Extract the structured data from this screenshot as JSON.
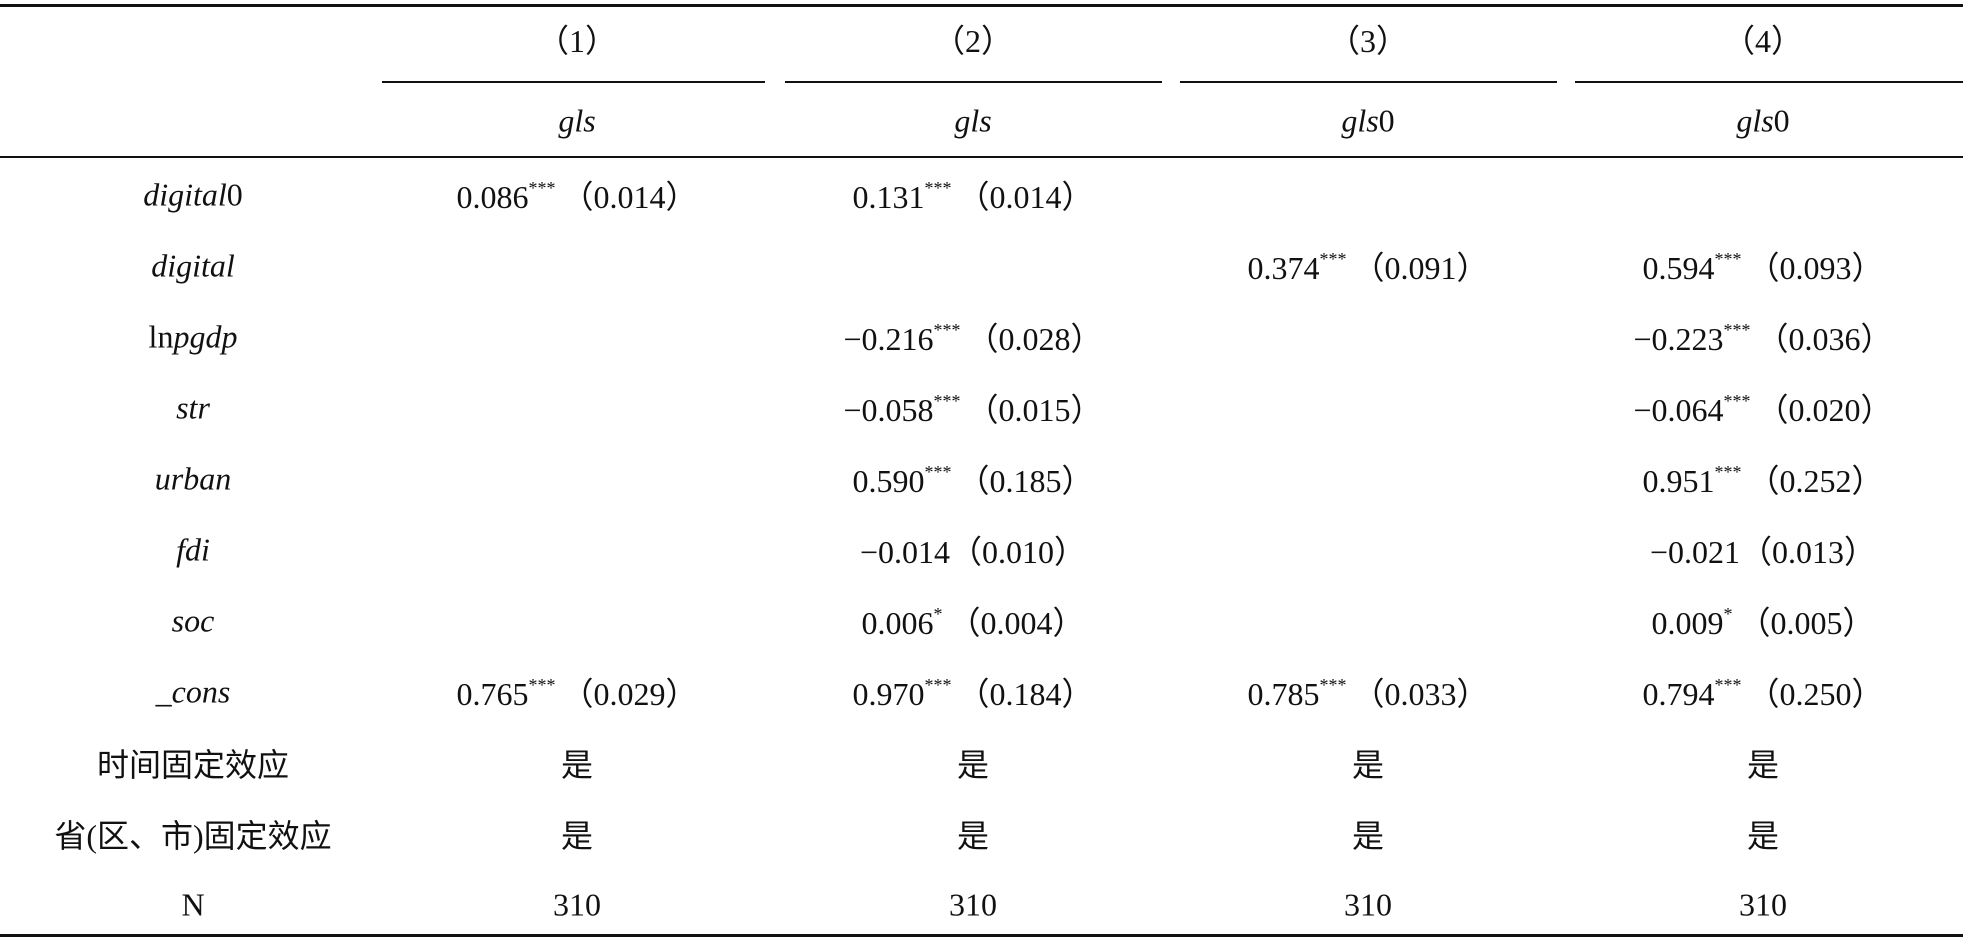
{
  "table": {
    "columns": [
      {
        "number": "（1）",
        "dep": [
          {
            "text": "gls",
            "italic": true
          }
        ]
      },
      {
        "number": "（2）",
        "dep": [
          {
            "text": "gls",
            "italic": true
          }
        ]
      },
      {
        "number": "（3）",
        "dep": [
          {
            "text": "gls",
            "italic": true
          },
          {
            "text": "0",
            "italic": false
          }
        ]
      },
      {
        "number": "（4）",
        "dep": [
          {
            "text": "gls",
            "italic": true
          },
          {
            "text": "0",
            "italic": false
          }
        ]
      }
    ],
    "rows": [
      {
        "label": [
          {
            "text": "digital",
            "italic": true
          },
          {
            "text": "0",
            "italic": false
          }
        ],
        "cells": [
          {
            "coef": "0.086",
            "stars": "***",
            "se": "（0.014）"
          },
          {
            "coef": "0.131",
            "stars": "***",
            "se": "（0.014）"
          },
          null,
          null
        ]
      },
      {
        "label": [
          {
            "text": "digital",
            "italic": true
          }
        ],
        "cells": [
          null,
          null,
          {
            "coef": "0.374",
            "stars": "***",
            "se": "（0.091）"
          },
          {
            "coef": "0.594",
            "stars": "***",
            "se": "（0.093）"
          }
        ]
      },
      {
        "label": [
          {
            "text": "ln",
            "italic": false
          },
          {
            "text": "pgdp",
            "italic": true
          }
        ],
        "cells": [
          null,
          {
            "coef": "−0.216",
            "stars": "***",
            "se": "（0.028）"
          },
          null,
          {
            "coef": "−0.223",
            "stars": "***",
            "se": "（0.036）"
          }
        ]
      },
      {
        "label": [
          {
            "text": "str",
            "italic": true
          }
        ],
        "cells": [
          null,
          {
            "coef": "−0.058",
            "stars": "***",
            "se": "（0.015）"
          },
          null,
          {
            "coef": "−0.064",
            "stars": "***",
            "se": "（0.020）"
          }
        ]
      },
      {
        "label": [
          {
            "text": "urban",
            "italic": true
          }
        ],
        "cells": [
          null,
          {
            "coef": "0.590",
            "stars": "***",
            "se": "（0.185）"
          },
          null,
          {
            "coef": "0.951",
            "stars": "***",
            "se": "（0.252）"
          }
        ]
      },
      {
        "label": [
          {
            "text": "fdi",
            "italic": true
          }
        ],
        "cells": [
          null,
          {
            "coef": "−0.014",
            "se": "（0.010）"
          },
          null,
          {
            "coef": "−0.021",
            "se": "（0.013）"
          }
        ]
      },
      {
        "label": [
          {
            "text": "soc",
            "italic": true
          }
        ],
        "cells": [
          null,
          {
            "coef": "0.006",
            "stars": "*",
            "se": "（0.004）"
          },
          null,
          {
            "coef": "0.009",
            "stars": "*",
            "se": "（0.005）"
          }
        ]
      },
      {
        "label": [
          {
            "text": "_cons",
            "italic": true
          }
        ],
        "cells": [
          {
            "coef": "0.765",
            "stars": "***",
            "se": "（0.029）"
          },
          {
            "coef": "0.970",
            "stars": "***",
            "se": "（0.184）"
          },
          {
            "coef": "0.785",
            "stars": "***",
            "se": "（0.033）"
          },
          {
            "coef": "0.794",
            "stars": "***",
            "se": "（0.250）"
          }
        ]
      },
      {
        "label": [
          {
            "text": "时间固定效应",
            "italic": false
          }
        ],
        "cells": [
          {
            "coef": "是"
          },
          {
            "coef": "是"
          },
          {
            "coef": "是"
          },
          {
            "coef": "是"
          }
        ]
      },
      {
        "label": [
          {
            "text": "省(区、市)固定效应",
            "italic": false
          }
        ],
        "cells": [
          {
            "coef": "是"
          },
          {
            "coef": "是"
          },
          {
            "coef": "是"
          },
          {
            "coef": "是"
          }
        ]
      },
      {
        "label": [
          {
            "text": "N",
            "italic": false
          }
        ],
        "cells": [
          {
            "coef": "310"
          },
          {
            "coef": "310"
          },
          {
            "coef": "310"
          },
          {
            "coef": "310"
          }
        ]
      }
    ]
  }
}
